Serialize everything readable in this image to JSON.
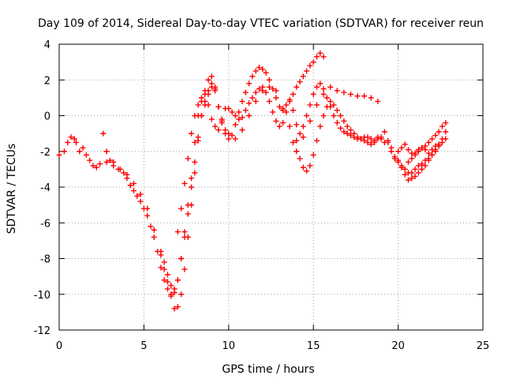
{
  "chart_data": {
    "type": "scatter",
    "title": "Day 109 of 2014, Sidereal Day-to-day VTEC variation (SDTVAR) for receiver reun",
    "xlabel": "GPS time / hours",
    "ylabel": "SDTVAR / TECUs",
    "xlim": [
      0,
      25
    ],
    "ylim": [
      -12,
      4
    ],
    "xticks": [
      0,
      5,
      10,
      15,
      20,
      25
    ],
    "yticks": [
      -12,
      -10,
      -8,
      -6,
      -4,
      -2,
      0,
      2,
      4
    ],
    "grid": true,
    "marker": "plus",
    "color": "#ff0000",
    "series": [
      {
        "x": [
          0.0,
          0.3,
          0.5,
          0.7,
          0.9,
          1.0,
          1.2,
          1.4,
          1.6,
          1.8,
          2.0,
          2.2,
          2.4,
          2.6,
          2.8,
          3.0,
          3.2,
          3.5,
          3.8,
          4.0,
          4.2,
          4.4,
          4.6,
          4.8,
          5.0,
          5.2,
          5.4,
          5.6,
          5.8,
          6.0,
          6.2,
          6.4,
          6.6,
          6.8,
          7.0,
          7.2,
          7.4,
          7.6,
          7.8,
          8.0,
          8.2,
          8.4,
          8.6,
          8.8,
          9.0,
          9.2,
          9.4,
          9.6,
          9.8,
          10.0,
          10.2,
          10.4,
          10.6,
          10.8,
          11.0,
          11.2,
          11.4,
          11.6,
          11.8,
          12.0,
          12.2,
          12.4,
          12.6,
          12.8,
          13.0,
          13.2,
          13.4,
          13.6,
          13.8,
          14.0,
          14.2,
          14.4,
          14.6,
          14.8,
          15.0,
          15.2,
          15.4,
          15.6,
          15.8,
          16.0,
          16.2,
          16.4,
          16.6,
          16.8,
          17.0,
          17.2,
          17.4,
          17.6,
          17.8,
          18.0,
          18.2,
          18.4,
          18.6,
          18.8,
          19.0,
          19.2,
          19.4,
          19.6,
          19.8,
          20.0,
          20.2,
          20.4,
          20.6,
          20.8,
          21.0,
          21.2,
          21.4,
          21.6,
          21.8,
          22.0,
          22.2,
          22.4,
          22.6,
          22.8
        ],
        "y": [
          -2.2,
          -2.0,
          -1.5,
          -1.2,
          -1.3,
          -1.5,
          -2.0,
          -1.8,
          -2.2,
          -2.5,
          -2.8,
          -2.9,
          -2.7,
          -1.0,
          -2.0,
          -2.5,
          -2.6,
          -3.0,
          -3.2,
          -3.5,
          -3.9,
          -4.2,
          -4.5,
          -4.8,
          -5.2,
          -5.6,
          -6.2,
          -6.8,
          -7.6,
          -8.5,
          -9.2,
          -9.7,
          -10.0,
          -9.9,
          -9.2,
          -8.0,
          -6.5,
          -5.0,
          -3.5,
          -1.5,
          0.0,
          0.8,
          1.4,
          2.0,
          2.2,
          1.5,
          0.5,
          -0.3,
          -0.8,
          -1.0,
          -1.1,
          -0.5,
          0.2,
          0.8,
          1.3,
          1.8,
          2.2,
          2.5,
          2.7,
          2.6,
          2.4,
          2.0,
          1.5,
          1.0,
          0.5,
          0.3,
          0.6,
          0.9,
          0.3,
          -0.5,
          -1.0,
          -0.6,
          0.0,
          0.6,
          1.2,
          1.6,
          1.8,
          1.5,
          1.0,
          0.5,
          0.0,
          -0.4,
          -0.7,
          -0.9,
          -1.0,
          -1.1,
          -1.2,
          -1.3,
          -1.3,
          -1.2,
          -1.2,
          -1.3,
          -1.4,
          -1.3,
          -1.2,
          -1.5,
          -1.4,
          -1.8,
          -2.3,
          -2.5,
          -2.8,
          -3.0,
          -3.2,
          -3.2,
          -3.0,
          -2.8,
          -2.7,
          -2.5,
          -2.4,
          -2.2,
          -2.0,
          -1.7,
          -1.3,
          -0.9
        ]
      },
      {
        "x": [
          2.8,
          3.2,
          3.6,
          4.0,
          4.4,
          4.8,
          5.2,
          5.6,
          6.0,
          6.2,
          6.4,
          6.6,
          6.8,
          7.0,
          7.2,
          7.4,
          7.6,
          7.8,
          8.0,
          8.2,
          8.4,
          8.6,
          8.8,
          9.0,
          9.2,
          9.4,
          9.6,
          9.8,
          10.0,
          10.4,
          10.8,
          11.2,
          11.6,
          12.0,
          12.4,
          12.8,
          13.2,
          13.6,
          14.0,
          14.4,
          14.8,
          15.2,
          15.6,
          16.0,
          16.4,
          16.8,
          17.2,
          17.6,
          18.0,
          18.4,
          18.8
        ],
        "y": [
          -2.6,
          -2.8,
          -3.0,
          -3.3,
          -3.8,
          -4.4,
          -5.2,
          -6.4,
          -7.8,
          -8.6,
          -9.3,
          -10.1,
          -10.8,
          -10.7,
          -10.0,
          -8.6,
          -6.8,
          -5.0,
          -3.2,
          -1.4,
          0.0,
          0.8,
          1.4,
          1.8,
          1.6,
          0.5,
          -0.4,
          -1.0,
          -1.3,
          -1.3,
          -0.8,
          0.0,
          0.8,
          1.4,
          1.6,
          1.4,
          0.4,
          -0.6,
          -1.4,
          -1.2,
          -0.3,
          0.6,
          1.2,
          1.6,
          1.4,
          1.3,
          1.2,
          1.1,
          1.1,
          1.0,
          0.8
        ]
      },
      {
        "x": [
          7.0,
          7.2,
          7.4,
          7.6,
          7.8,
          8.0,
          8.2,
          8.4,
          8.6,
          8.8,
          9.0,
          9.2,
          9.4,
          9.6,
          9.8,
          10.0,
          10.2,
          10.4,
          10.6,
          10.8,
          11.0,
          11.2,
          11.4,
          11.6,
          11.8,
          12.0,
          12.2,
          12.4,
          12.6,
          12.8,
          13.0,
          13.2,
          13.4,
          13.6,
          13.8,
          14.0,
          14.2,
          14.4,
          14.6,
          14.8,
          15.0,
          15.2,
          15.4,
          15.6
        ],
        "y": [
          -6.5,
          -5.2,
          -3.8,
          -2.4,
          -1.0,
          0.0,
          0.6,
          1.0,
          1.2,
          0.6,
          -0.2,
          -0.6,
          -0.8,
          -0.2,
          0.4,
          0.4,
          0.2,
          0.0,
          -0.2,
          -0.1,
          0.3,
          0.7,
          1.0,
          1.3,
          1.5,
          1.6,
          1.3,
          0.8,
          0.2,
          -0.3,
          -0.6,
          -0.4,
          0.2,
          0.8,
          1.2,
          1.6,
          1.9,
          2.2,
          2.5,
          2.8,
          3.0,
          3.3,
          3.5,
          3.3
        ]
      },
      {
        "x": [
          13.8,
          14.0,
          14.2,
          14.4,
          14.6,
          14.8,
          15.0,
          15.2,
          15.4,
          15.6,
          15.8,
          16.0,
          16.2,
          16.4,
          16.6,
          16.8,
          17.0,
          17.2,
          17.4,
          17.6,
          17.8,
          18.0,
          18.2,
          18.4,
          18.6,
          18.8,
          19.0,
          19.2,
          19.4,
          19.6,
          19.8,
          20.0,
          20.2,
          20.4,
          20.6,
          20.8,
          21.0,
          21.2,
          21.4,
          21.6,
          21.8,
          22.0,
          22.2,
          22.4,
          22.6,
          22.8
        ],
        "y": [
          -1.5,
          -2.0,
          -2.4,
          -2.9,
          -3.1,
          -2.8,
          -2.2,
          -1.4,
          -0.6,
          0.0,
          0.5,
          0.8,
          0.6,
          0.3,
          0.0,
          -0.3,
          -0.6,
          -0.8,
          -1.0,
          -1.2,
          -1.3,
          -1.4,
          -1.5,
          -1.6,
          -1.5,
          -1.2,
          -1.3,
          -0.9,
          -1.5,
          -2.0,
          -2.4,
          -2.6,
          -2.9,
          -3.3,
          -3.6,
          -3.5,
          -3.4,
          -3.2,
          -3.0,
          -2.8,
          -2.5,
          -2.2,
          -1.9,
          -1.7,
          -1.5,
          -1.3
        ]
      },
      {
        "x": [
          6.0,
          6.2,
          6.4,
          6.6,
          6.8,
          7.0,
          7.2,
          7.4,
          7.6,
          7.8,
          8.0,
          8.2,
          8.4,
          8.6,
          8.8,
          9.0,
          9.2
        ],
        "y": [
          -7.6,
          -8.2,
          -8.9,
          -9.5,
          -9.7,
          -9.2,
          -8.0,
          -6.8,
          -5.5,
          -4.0,
          -2.6,
          -1.2,
          0.0,
          0.6,
          1.2,
          1.6,
          1.4
        ]
      },
      {
        "x": [
          20.6,
          20.8,
          21.0,
          21.2,
          21.4,
          21.6,
          21.8,
          22.0,
          22.2,
          22.4,
          22.6,
          22.8
        ],
        "y": [
          -2.6,
          -2.4,
          -2.1,
          -1.9,
          -1.8,
          -1.7,
          -1.5,
          -1.3,
          -1.1,
          -0.9,
          -0.6,
          -0.4
        ]
      },
      {
        "x": [
          20.0,
          20.2,
          20.4,
          20.6,
          20.8,
          21.0,
          21.2,
          21.4,
          21.6,
          21.8,
          22.0,
          22.2,
          22.4
        ],
        "y": [
          -2.0,
          -1.8,
          -1.6,
          -1.9,
          -2.1,
          -2.2,
          -2.0,
          -1.8,
          -1.9,
          -2.1,
          -1.9,
          -1.7,
          -1.6
        ]
      }
    ]
  }
}
